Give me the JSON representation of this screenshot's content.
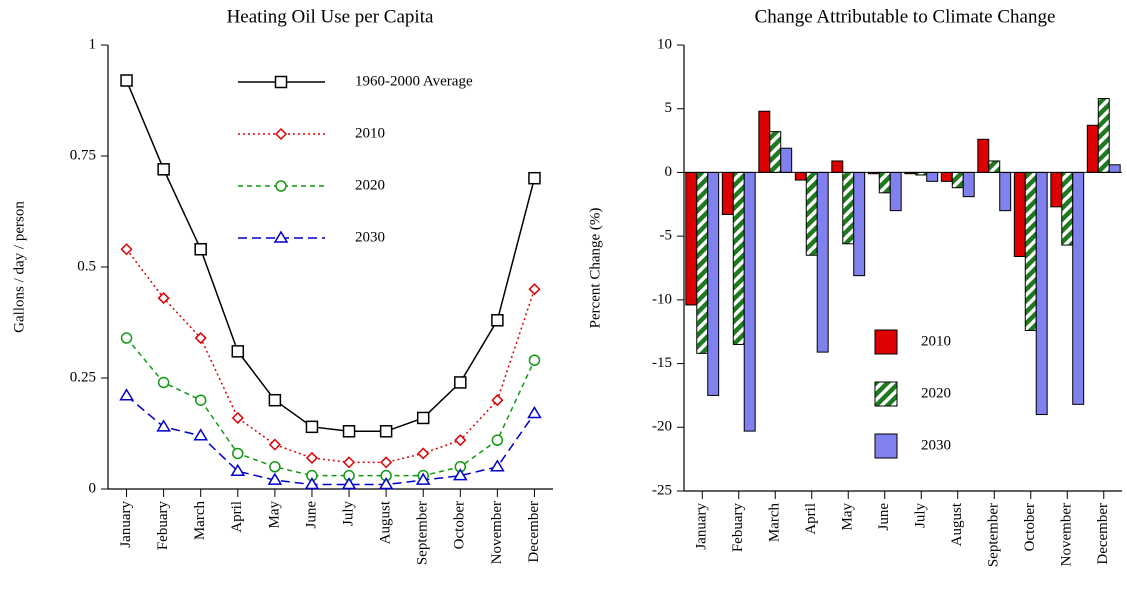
{
  "chart_data": [
    {
      "type": "line",
      "title": "Heating Oil Use per Capita",
      "y_label": "Gallons / day / person",
      "categories": [
        "January",
        "Febuary",
        "March",
        "April",
        "May",
        "June",
        "July",
        "August",
        "September",
        "October",
        "November",
        "December"
      ],
      "series": [
        {
          "name": "1960-2000 Average",
          "color": "#000000",
          "marker": "square",
          "dash": "solid",
          "values": [
            0.92,
            0.72,
            0.54,
            0.31,
            0.2,
            0.14,
            0.13,
            0.13,
            0.16,
            0.24,
            0.38,
            0.7
          ]
        },
        {
          "name": "2010",
          "color": "#dd0000",
          "marker": "diamond",
          "dash": "dotted",
          "values": [
            0.54,
            0.43,
            0.34,
            0.16,
            0.1,
            0.07,
            0.06,
            0.06,
            0.08,
            0.11,
            0.2,
            0.45
          ]
        },
        {
          "name": "2020",
          "color": "#119911",
          "marker": "circle",
          "dash": "dashed",
          "values": [
            0.34,
            0.24,
            0.2,
            0.08,
            0.05,
            0.03,
            0.03,
            0.03,
            0.03,
            0.05,
            0.11,
            0.29
          ]
        },
        {
          "name": "2030",
          "color": "#0000cc",
          "marker": "triangle",
          "dash": "longdash",
          "values": [
            0.21,
            0.14,
            0.12,
            0.04,
            0.02,
            0.01,
            0.01,
            0.01,
            0.02,
            0.03,
            0.05,
            0.17
          ]
        }
      ],
      "ylim": [
        0,
        1
      ],
      "yticks": [
        0,
        0.25,
        0.5,
        0.75,
        1
      ],
      "legend": "upper right"
    },
    {
      "type": "bar",
      "title": "Change Attributable to Climate Change",
      "y_label": "Percent Change (%)",
      "categories": [
        "January",
        "Febuary",
        "March",
        "April",
        "May",
        "June",
        "July",
        "August",
        "September",
        "October",
        "November",
        "December"
      ],
      "series": [
        {
          "name": "2010",
          "color": "#dd0000",
          "hatch": false,
          "values": [
            -10.4,
            -3.3,
            4.8,
            -0.6,
            0.9,
            -0.1,
            -0.1,
            -0.7,
            2.6,
            -6.6,
            -2.7,
            3.7
          ]
        },
        {
          "name": "2020",
          "color": "#1e7a1e",
          "hatch": true,
          "values": [
            -14.2,
            -13.5,
            3.2,
            -6.5,
            -5.6,
            -1.6,
            -0.2,
            -1.2,
            0.9,
            -12.4,
            -5.7,
            5.8
          ]
        },
        {
          "name": "2030",
          "color": "#8080ee",
          "hatch": false,
          "values": [
            -17.5,
            -20.3,
            1.9,
            -14.1,
            -8.1,
            -3.0,
            -0.7,
            -1.9,
            -3.0,
            -19.0,
            -18.2,
            0.6
          ]
        }
      ],
      "ylim": [
        -25,
        10
      ],
      "yticks": [
        -25,
        -20,
        -15,
        -10,
        -5,
        0,
        5,
        10
      ],
      "legend": "lower center"
    }
  ]
}
